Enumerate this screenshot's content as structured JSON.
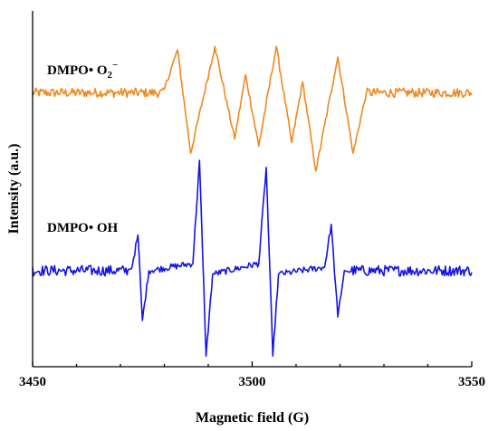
{
  "chart_data": {
    "type": "line",
    "xlabel": "Magnetic field (G)",
    "ylabel": "Intensity (a.u.)",
    "xlim": [
      3450,
      3550
    ],
    "ylim": [
      0,
      10
    ],
    "xticks": [
      "3450",
      "3500",
      "3550"
    ],
    "grid": false,
    "y_ticks_labeled": false,
    "series": [
      {
        "name": "DMPO• O2−",
        "label_main": "DMPO• O",
        "label_sub": "2",
        "label_sup": "−",
        "color": "#f0871e",
        "baseline": 7.7,
        "noise": 0.13,
        "extent": [
          3480,
          3526
        ],
        "features": [
          {
            "x": 3480.0,
            "y": 7.8
          },
          {
            "x": 3483.0,
            "y": 8.9
          },
          {
            "x": 3486.0,
            "y": 6.0
          },
          {
            "x": 3491.5,
            "y": 9.0
          },
          {
            "x": 3496.0,
            "y": 6.4
          },
          {
            "x": 3498.5,
            "y": 8.2
          },
          {
            "x": 3501.5,
            "y": 6.2
          },
          {
            "x": 3505.5,
            "y": 9.0
          },
          {
            "x": 3509.0,
            "y": 6.3
          },
          {
            "x": 3511.5,
            "y": 8.0
          },
          {
            "x": 3514.5,
            "y": 5.5
          },
          {
            "x": 3519.5,
            "y": 8.7
          },
          {
            "x": 3523.0,
            "y": 6.0
          },
          {
            "x": 3526.0,
            "y": 7.7
          }
        ]
      },
      {
        "name": "DMPO• OH",
        "label_main": "DMPO• OH",
        "label_sub": "",
        "label_sup": "",
        "color": "#1414e6",
        "baseline": 2.7,
        "noise": 0.15,
        "extent": [
          3472,
          3522
        ],
        "features": [
          {
            "x": 3472.5,
            "y": 2.75
          },
          {
            "x": 3474.0,
            "y": 3.7
          },
          {
            "x": 3475.0,
            "y": 1.3
          },
          {
            "x": 3476.5,
            "y": 2.7
          },
          {
            "x": 3486.5,
            "y": 2.9
          },
          {
            "x": 3488.0,
            "y": 5.8
          },
          {
            "x": 3489.5,
            "y": 0.3
          },
          {
            "x": 3491.0,
            "y": 2.6
          },
          {
            "x": 3501.5,
            "y": 2.9
          },
          {
            "x": 3503.2,
            "y": 5.6
          },
          {
            "x": 3504.7,
            "y": 0.3
          },
          {
            "x": 3506.0,
            "y": 2.6
          },
          {
            "x": 3516.5,
            "y": 2.8
          },
          {
            "x": 3518.0,
            "y": 4.0
          },
          {
            "x": 3519.5,
            "y": 1.4
          },
          {
            "x": 3521.0,
            "y": 2.7
          }
        ]
      }
    ]
  }
}
